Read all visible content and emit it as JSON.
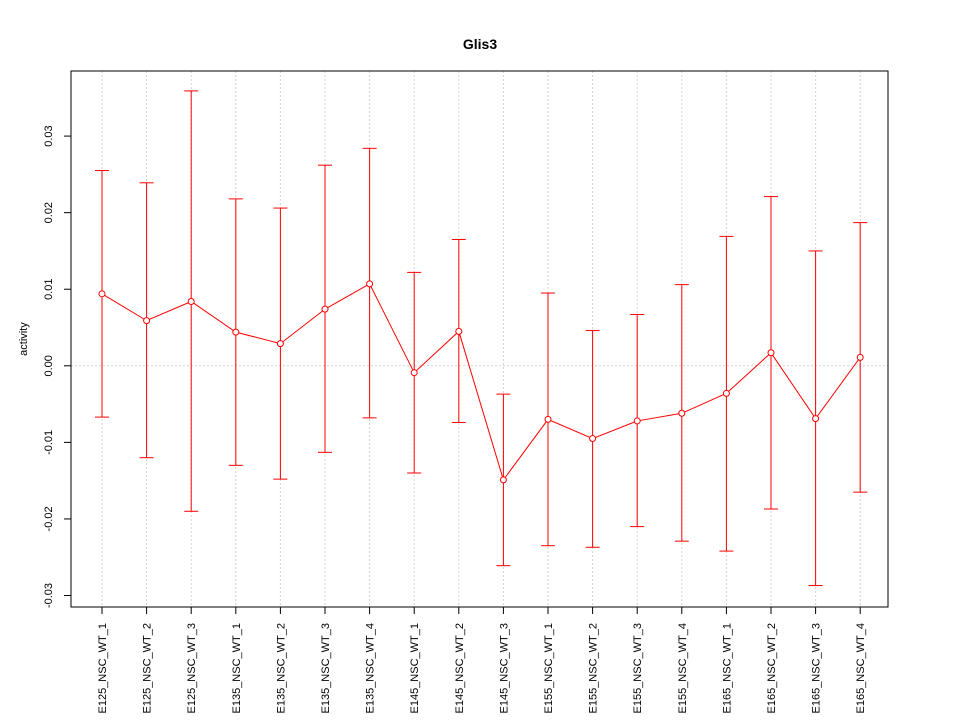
{
  "chart_data": {
    "type": "line",
    "title": "Glis3",
    "xlabel": "",
    "ylabel": "activity",
    "ylim": [
      -0.0315,
      0.0385
    ],
    "yticks": [
      -0.03,
      -0.02,
      -0.01,
      0.0,
      0.01,
      0.02,
      0.03
    ],
    "ytick_labels": [
      "-0.03",
      "-0.02",
      "-0.01",
      "0.00",
      "0.01",
      "0.02",
      "0.03"
    ],
    "grid": true,
    "reference_line_y": 0.0,
    "categories": [
      "E125_NSC_WT_1",
      "E125_NSC_WT_2",
      "E125_NSC_WT_3",
      "E135_NSC_WT_1",
      "E135_NSC_WT_2",
      "E135_NSC_WT_3",
      "E135_NSC_WT_4",
      "E145_NSC_WT_1",
      "E145_NSC_WT_2",
      "E145_NSC_WT_3",
      "E155_NSC_WT_1",
      "E155_NSC_WT_2",
      "E155_NSC_WT_3",
      "E155_NSC_WT_4",
      "E165_NSC_WT_1",
      "E165_NSC_WT_2",
      "E165_NSC_WT_3",
      "E165_NSC_WT_4"
    ],
    "series": [
      {
        "color": "#ff0000",
        "values": [
          0.0094,
          0.0059,
          0.0084,
          0.0044,
          0.0029,
          0.0074,
          0.0107,
          -0.0009,
          0.0045,
          -0.0149,
          -0.007,
          -0.0095,
          -0.0072,
          -0.0062,
          -0.0036,
          0.0017,
          -0.0069,
          0.0011
        ],
        "error_low": [
          -0.0067,
          -0.012,
          -0.019,
          -0.013,
          -0.0148,
          -0.0113,
          -0.0068,
          -0.014,
          -0.0074,
          -0.0261,
          -0.0235,
          -0.0237,
          -0.021,
          -0.0229,
          -0.0242,
          -0.0187,
          -0.0287,
          -0.0165
        ],
        "error_high": [
          0.0255,
          0.0239,
          0.0359,
          0.0218,
          0.0206,
          0.0262,
          0.0284,
          0.0122,
          0.0165,
          -0.0037,
          0.0095,
          0.0046,
          0.0067,
          0.0106,
          0.0169,
          0.0221,
          0.015,
          0.0187
        ]
      }
    ]
  }
}
